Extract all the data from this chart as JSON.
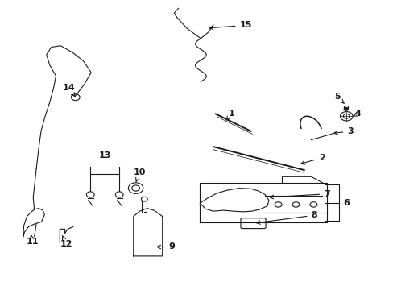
{
  "bg_color": "#ffffff",
  "line_color": "#1a1a1a",
  "figsize": [
    4.89,
    3.6
  ],
  "dpi": 100,
  "font_size": 8,
  "line_width": 0.8
}
